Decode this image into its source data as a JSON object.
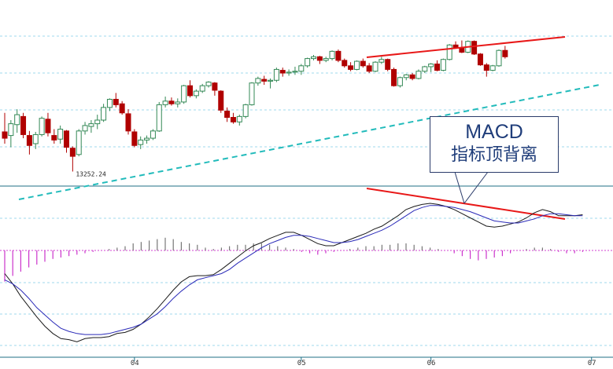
{
  "chart_data": [
    {
      "type": "candlestick",
      "panel": "price",
      "title": "",
      "low_label": "13252.24",
      "ohlc": [
        [
          13690,
          13900,
          13560,
          13620
        ],
        [
          13650,
          13820,
          13520,
          13780
        ],
        [
          13770,
          13940,
          13680,
          13880
        ],
        [
          13860,
          13900,
          13620,
          13660
        ],
        [
          13650,
          13700,
          13440,
          13540
        ],
        [
          13560,
          13690,
          13500,
          13660
        ],
        [
          13660,
          13860,
          13640,
          13840
        ],
        [
          13830,
          13900,
          13640,
          13680
        ],
        [
          13650,
          13720,
          13560,
          13600
        ],
        [
          13610,
          13760,
          13560,
          13720
        ],
        [
          13700,
          13710,
          13460,
          13520
        ],
        [
          13510,
          13530,
          13252,
          13420
        ],
        [
          13440,
          13720,
          13420,
          13700
        ],
        [
          13700,
          13800,
          13660,
          13760
        ],
        [
          13750,
          13820,
          13680,
          13780
        ],
        [
          13780,
          13880,
          13720,
          13820
        ],
        [
          13820,
          14000,
          13800,
          13960
        ],
        [
          13960,
          14060,
          13920,
          14050
        ],
        [
          14050,
          14120,
          13960,
          13990
        ],
        [
          14000,
          14030,
          13880,
          13900
        ],
        [
          13890,
          13940,
          13660,
          13700
        ],
        [
          13690,
          13720,
          13520,
          13540
        ],
        [
          13550,
          13640,
          13500,
          13600
        ],
        [
          13600,
          13650,
          13560,
          13620
        ],
        [
          13620,
          13720,
          13600,
          13700
        ],
        [
          13700,
          14020,
          13690,
          13990
        ],
        [
          13990,
          14080,
          13960,
          14030
        ],
        [
          14030,
          14070,
          13980,
          14000
        ],
        [
          14000,
          14060,
          13960,
          14020
        ],
        [
          14020,
          14210,
          14000,
          14200
        ],
        [
          14200,
          14260,
          14070,
          14090
        ],
        [
          14090,
          14160,
          14060,
          14140
        ],
        [
          14140,
          14220,
          14120,
          14200
        ],
        [
          14200,
          14250,
          14180,
          14240
        ],
        [
          14230,
          14240,
          14090,
          14150
        ],
        [
          14140,
          14150,
          13900,
          13930
        ],
        [
          13920,
          13960,
          13800,
          13850
        ],
        [
          13850,
          13900,
          13780,
          13800
        ],
        [
          13800,
          13880,
          13760,
          13860
        ],
        [
          13860,
          14000,
          13840,
          13990
        ],
        [
          13990,
          14240,
          13980,
          14230
        ],
        [
          14230,
          14300,
          14200,
          14280
        ],
        [
          14270,
          14310,
          14210,
          14250
        ],
        [
          14250,
          14280,
          14170,
          14260
        ],
        [
          14260,
          14400,
          14240,
          14380
        ],
        [
          14370,
          14400,
          14300,
          14340
        ],
        [
          14340,
          14380,
          14310,
          14350
        ],
        [
          14350,
          14410,
          14320,
          14360
        ],
        [
          14360,
          14440,
          14320,
          14420
        ],
        [
          14420,
          14510,
          14400,
          14500
        ],
        [
          14500,
          14540,
          14480,
          14520
        ],
        [
          14520,
          14530,
          14440,
          14480
        ],
        [
          14480,
          14520,
          14460,
          14500
        ],
        [
          14500,
          14590,
          14480,
          14580
        ],
        [
          14580,
          14600,
          14460,
          14480
        ],
        [
          14480,
          14500,
          14400,
          14420
        ],
        [
          14420,
          14460,
          14360,
          14380
        ],
        [
          14380,
          14480,
          14370,
          14470
        ],
        [
          14470,
          14500,
          14400,
          14420
        ],
        [
          14420,
          14450,
          14340,
          14360
        ],
        [
          14360,
          14470,
          14350,
          14460
        ],
        [
          14460,
          14520,
          14440,
          14490
        ],
        [
          14490,
          14500,
          14360,
          14380
        ],
        [
          14380,
          14400,
          14190,
          14200
        ],
        [
          14200,
          14300,
          14180,
          14290
        ],
        [
          14290,
          14330,
          14260,
          14320
        ],
        [
          14320,
          14340,
          14260,
          14280
        ],
        [
          14280,
          14380,
          14270,
          14360
        ],
        [
          14360,
          14420,
          14340,
          14410
        ],
        [
          14410,
          14450,
          14350,
          14440
        ],
        [
          14440,
          14480,
          14360,
          14370
        ],
        [
          14370,
          14500,
          14360,
          14490
        ],
        [
          14490,
          14660,
          14480,
          14650
        ],
        [
          14650,
          14690,
          14610,
          14620
        ],
        [
          14620,
          14700,
          14560,
          14570
        ],
        [
          14570,
          14700,
          14560,
          14690
        ],
        [
          14690,
          14700,
          14540,
          14550
        ],
        [
          14550,
          14560,
          14420,
          14430
        ],
        [
          14430,
          14450,
          14300,
          14370
        ],
        [
          14370,
          14430,
          14360,
          14420
        ],
        [
          14420,
          14600,
          14410,
          14590
        ],
        [
          14590,
          14640,
          14500,
          14520
        ]
      ]
    },
    {
      "type": "line+bar",
      "panel": "macd",
      "series": [
        {
          "key": "dif",
          "color": "#1a1a1a",
          "values": [
            0.66,
            0.56,
            0.44,
            0.34,
            0.24,
            0.15,
            0.08,
            0.03,
            0.02,
            0.0,
            0.03,
            0.04,
            0.04,
            0.05,
            0.08,
            0.09,
            0.12,
            0.17,
            0.24,
            0.32,
            0.41,
            0.5,
            0.58,
            0.63,
            0.64,
            0.64,
            0.65,
            0.7,
            0.76,
            0.82,
            0.88,
            0.93,
            0.96,
            1.0,
            1.03,
            1.06,
            1.06,
            1.03,
            0.99,
            0.95,
            0.93,
            0.93,
            0.96,
            0.99,
            1.02,
            1.05,
            1.09,
            1.12,
            1.17,
            1.22,
            1.28,
            1.31,
            1.33,
            1.34,
            1.33,
            1.31,
            1.28,
            1.24,
            1.2,
            1.16,
            1.12,
            1.11,
            1.12,
            1.14,
            1.16,
            1.2,
            1.25,
            1.28,
            1.26,
            1.22,
            1.22,
            1.22,
            1.23
          ]
        },
        {
          "key": "dea",
          "color": "#2a2ab8",
          "values": [
            0.6,
            0.56,
            0.5,
            0.42,
            0.33,
            0.26,
            0.19,
            0.13,
            0.1,
            0.08,
            0.07,
            0.07,
            0.07,
            0.08,
            0.1,
            0.12,
            0.14,
            0.17,
            0.22,
            0.27,
            0.34,
            0.42,
            0.49,
            0.55,
            0.6,
            0.62,
            0.64,
            0.66,
            0.7,
            0.76,
            0.81,
            0.86,
            0.91,
            0.95,
            0.98,
            1.01,
            1.03,
            1.03,
            1.02,
            1.0,
            0.98,
            0.96,
            0.96,
            0.97,
            0.99,
            1.02,
            1.05,
            1.08,
            1.12,
            1.17,
            1.22,
            1.27,
            1.3,
            1.32,
            1.32,
            1.31,
            1.3,
            1.28,
            1.26,
            1.23,
            1.2,
            1.17,
            1.16,
            1.15,
            1.15,
            1.17,
            1.19,
            1.22,
            1.24,
            1.24,
            1.23,
            1.22,
            1.22
          ]
        },
        {
          "key": "histogram",
          "pos_color": "#777777",
          "neg_color": "#cc33cc",
          "values": [
            -0.22,
            -0.18,
            -0.15,
            -0.12,
            -0.1,
            -0.08,
            -0.06,
            -0.05,
            -0.04,
            -0.03,
            -0.02,
            -0.01,
            0,
            0.01,
            0.02,
            0.03,
            0.05,
            0.06,
            0.07,
            0.08,
            0.09,
            0.08,
            0.06,
            0.05,
            0.04,
            0.02,
            0.01,
            0.02,
            0.03,
            0.04,
            0.04,
            0.05,
            0.05,
            0.04,
            0.03,
            0.02,
            0.01,
            -0.01,
            -0.02,
            -0.03,
            -0.02,
            -0.01,
            0.0,
            0.01,
            0.02,
            0.03,
            0.03,
            0.04,
            0.04,
            0.05,
            0.05,
            0.04,
            0.03,
            0.02,
            0.01,
            0,
            -0.02,
            -0.04,
            -0.06,
            -0.07,
            -0.06,
            -0.05,
            -0.04,
            -0.02,
            0,
            0.01,
            0.02,
            0.02,
            0.01,
            -0.01,
            -0.02,
            -0.02,
            -0.01
          ]
        }
      ]
    }
  ],
  "x_ticks": [
    {
      "label": "04",
      "index": 21
    },
    {
      "label": "05",
      "index": 48
    },
    {
      "label": "06",
      "index": 69
    },
    {
      "label": "07",
      "index": 95
    }
  ],
  "callout": {
    "line1": "MACD",
    "line2": "指标顶背离"
  },
  "colors": {
    "up_candle": "#ffffff",
    "down_candle": "#b00000",
    "candle_outline_up": "#338855",
    "trend_red": "#e81818",
    "trend_cyan": "#22bbbb",
    "grid": "#9fd9ee"
  }
}
